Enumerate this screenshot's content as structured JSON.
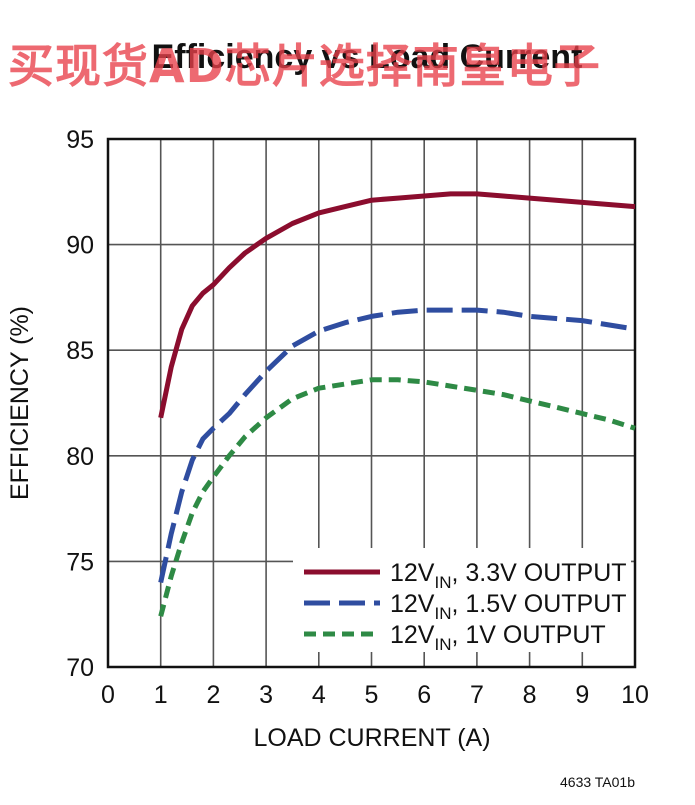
{
  "watermark": "买现货AD芯片选择南皇电子",
  "figure_id": "4633 TA01b",
  "chart_data": {
    "type": "line",
    "title": "Efficiency vs Load Current",
    "xlabel": "LOAD CURRENT (A)",
    "ylabel": "EFFICIENCY (%)",
    "xlim": [
      0,
      10
    ],
    "ylim": [
      70,
      95
    ],
    "xticks": [
      "0",
      "1",
      "2",
      "3",
      "4",
      "5",
      "6",
      "7",
      "8",
      "9",
      "10"
    ],
    "yticks": [
      "70",
      "75",
      "80",
      "85",
      "90",
      "95"
    ],
    "grid": true,
    "legend_position": "lower-right",
    "series": [
      {
        "name": "12VIN, 3.3V OUTPUT",
        "legend_main": "12V",
        "legend_sub": "IN",
        "legend_rest": ", 3.3V OUTPUT",
        "color": "#8b0d2e",
        "dash": "solid",
        "x": [
          1,
          1.2,
          1.4,
          1.6,
          1.8,
          2,
          2.3,
          2.6,
          3,
          3.5,
          4,
          4.5,
          5,
          5.5,
          6,
          6.5,
          7,
          7.5,
          8,
          8.5,
          9,
          9.5,
          10
        ],
        "y": [
          81.8,
          84.2,
          86.0,
          87.1,
          87.7,
          88.1,
          88.9,
          89.6,
          90.3,
          91.0,
          91.5,
          91.8,
          92.1,
          92.2,
          92.3,
          92.4,
          92.4,
          92.3,
          92.2,
          92.1,
          92.0,
          91.9,
          91.8
        ]
      },
      {
        "name": "12VIN, 1.5V OUTPUT",
        "legend_main": "12V",
        "legend_sub": "IN",
        "legend_rest": ", 1.5V OUTPUT",
        "color": "#2f4da0",
        "dash": "long-dash",
        "x": [
          1,
          1.2,
          1.4,
          1.6,
          1.8,
          2,
          2.3,
          2.6,
          3,
          3.5,
          4,
          4.5,
          5,
          5.5,
          6,
          6.5,
          7,
          7.5,
          8,
          8.5,
          9,
          9.5,
          10
        ],
        "y": [
          74.0,
          76.3,
          78.3,
          79.8,
          80.8,
          81.3,
          82.0,
          82.9,
          84.0,
          85.2,
          85.9,
          86.3,
          86.6,
          86.8,
          86.9,
          86.9,
          86.9,
          86.8,
          86.6,
          86.5,
          86.4,
          86.2,
          86.0
        ]
      },
      {
        "name": "12VIN, 1V OUTPUT",
        "legend_main": "12V",
        "legend_sub": "IN",
        "legend_rest": ", 1V OUTPUT",
        "color": "#2e8a45",
        "dash": "short-dash",
        "x": [
          1,
          1.2,
          1.4,
          1.6,
          1.8,
          2,
          2.3,
          2.6,
          3,
          3.5,
          4,
          4.5,
          5,
          5.5,
          6,
          6.5,
          7,
          7.5,
          8,
          8.5,
          9,
          9.5,
          10
        ],
        "y": [
          72.4,
          74.3,
          75.9,
          77.3,
          78.3,
          79.0,
          80.0,
          80.9,
          81.8,
          82.7,
          83.2,
          83.4,
          83.6,
          83.6,
          83.5,
          83.3,
          83.1,
          82.9,
          82.6,
          82.3,
          82.0,
          81.7,
          81.3
        ]
      }
    ]
  }
}
